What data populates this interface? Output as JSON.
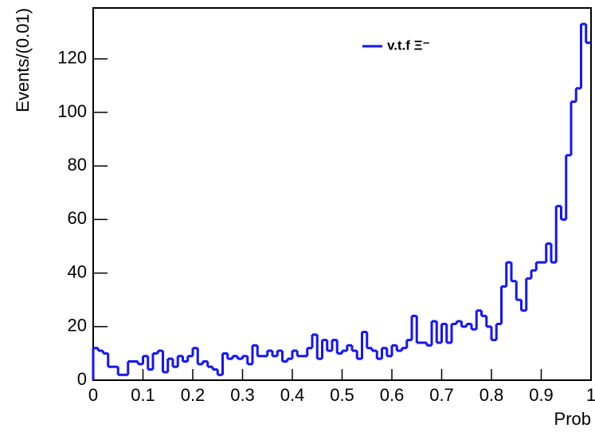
{
  "chart_data": {
    "type": "histogram",
    "xlabel": "Prob",
    "ylabel": "Events/(0.01)",
    "bins": [
      0,
      0.01,
      0.02,
      0.03,
      0.04,
      0.05,
      0.06,
      0.07,
      0.08,
      0.09,
      0.1,
      0.11,
      0.12,
      0.13,
      0.14,
      0.15,
      0.16,
      0.17,
      0.18,
      0.19,
      0.2,
      0.21,
      0.22,
      0.23,
      0.24,
      0.25,
      0.26,
      0.27,
      0.28,
      0.29,
      0.3,
      0.31,
      0.32,
      0.33,
      0.34,
      0.35,
      0.36,
      0.37,
      0.38,
      0.39,
      0.4,
      0.41,
      0.42,
      0.43,
      0.44,
      0.45,
      0.46,
      0.47,
      0.48,
      0.49,
      0.5,
      0.51,
      0.52,
      0.53,
      0.54,
      0.55,
      0.56,
      0.57,
      0.58,
      0.59,
      0.6,
      0.61,
      0.62,
      0.63,
      0.64,
      0.65,
      0.66,
      0.67,
      0.68,
      0.69,
      0.7,
      0.71,
      0.72,
      0.73,
      0.74,
      0.75,
      0.76,
      0.77,
      0.78,
      0.79,
      0.8,
      0.81,
      0.82,
      0.83,
      0.84,
      0.85,
      0.86,
      0.87,
      0.88,
      0.89,
      0.9,
      0.91,
      0.92,
      0.93,
      0.94,
      0.95,
      0.96,
      0.97,
      0.98,
      0.99,
      1
    ],
    "series": [
      {
        "name": "v.t.f  Ξ⁻",
        "color": "#1515f0",
        "values": [
          12,
          11,
          10,
          5,
          5,
          2,
          2,
          7,
          7,
          6,
          9,
          4,
          10,
          11,
          3,
          8,
          5,
          9,
          7,
          9,
          12,
          6,
          7,
          5,
          4,
          2,
          10,
          8,
          9,
          8,
          9,
          6,
          13,
          9,
          9,
          11,
          9,
          11,
          7,
          8,
          11,
          9,
          9,
          12,
          17,
          8,
          15,
          11,
          15,
          10,
          11,
          13,
          11,
          8,
          18,
          12,
          11,
          8,
          12,
          9,
          13,
          11,
          12,
          15,
          24,
          14,
          14,
          13,
          22,
          14,
          21,
          14,
          21,
          22,
          20,
          21,
          19,
          26,
          24,
          20,
          15,
          21,
          35,
          44,
          37,
          30,
          26,
          38,
          41,
          44,
          44,
          51,
          44,
          65,
          60,
          84,
          104,
          109,
          133,
          126
        ]
      }
    ],
    "xlim": [
      0,
      1
    ],
    "xticks": [
      0,
      0.1,
      0.2,
      0.3,
      0.4,
      0.5,
      0.6,
      0.7,
      0.8,
      0.9,
      1
    ],
    "ylim": [
      0,
      139
    ],
    "yticks": [
      0,
      20,
      40,
      60,
      80,
      100,
      120
    ]
  }
}
